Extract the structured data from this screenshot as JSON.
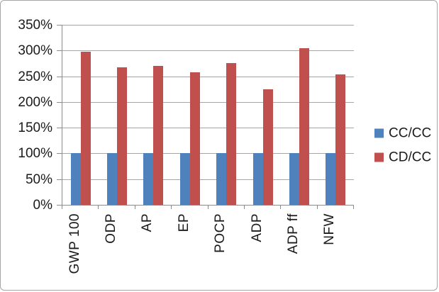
{
  "chart_data": {
    "type": "bar",
    "categories": [
      "GWP 100",
      "ODP",
      "AP",
      "EP",
      "POCP",
      "ADP",
      "ADP ff",
      "NFW"
    ],
    "series": [
      {
        "name": "CC/CC",
        "color": "#4f81bd",
        "values": [
          100,
          100,
          100,
          100,
          100,
          100,
          100,
          100
        ]
      },
      {
        "name": "CD/CC",
        "color": "#c0504d",
        "values": [
          298,
          268,
          270,
          258,
          276,
          224,
          305,
          254
        ]
      }
    ],
    "title": "",
    "xlabel": "",
    "ylabel": "",
    "ylim": [
      0,
      350
    ],
    "ytick_step": 50,
    "ytick_labels": [
      "0%",
      "50%",
      "100%",
      "150%",
      "200%",
      "250%",
      "300%",
      "350%"
    ],
    "grid": true,
    "legend_position": "right"
  },
  "colors": {
    "gridline": "#a6a6a6",
    "axis": "#8c8c8c",
    "frame_border": "#a6a6a6",
    "text": "#1a1a1a",
    "background": "#ffffff"
  }
}
